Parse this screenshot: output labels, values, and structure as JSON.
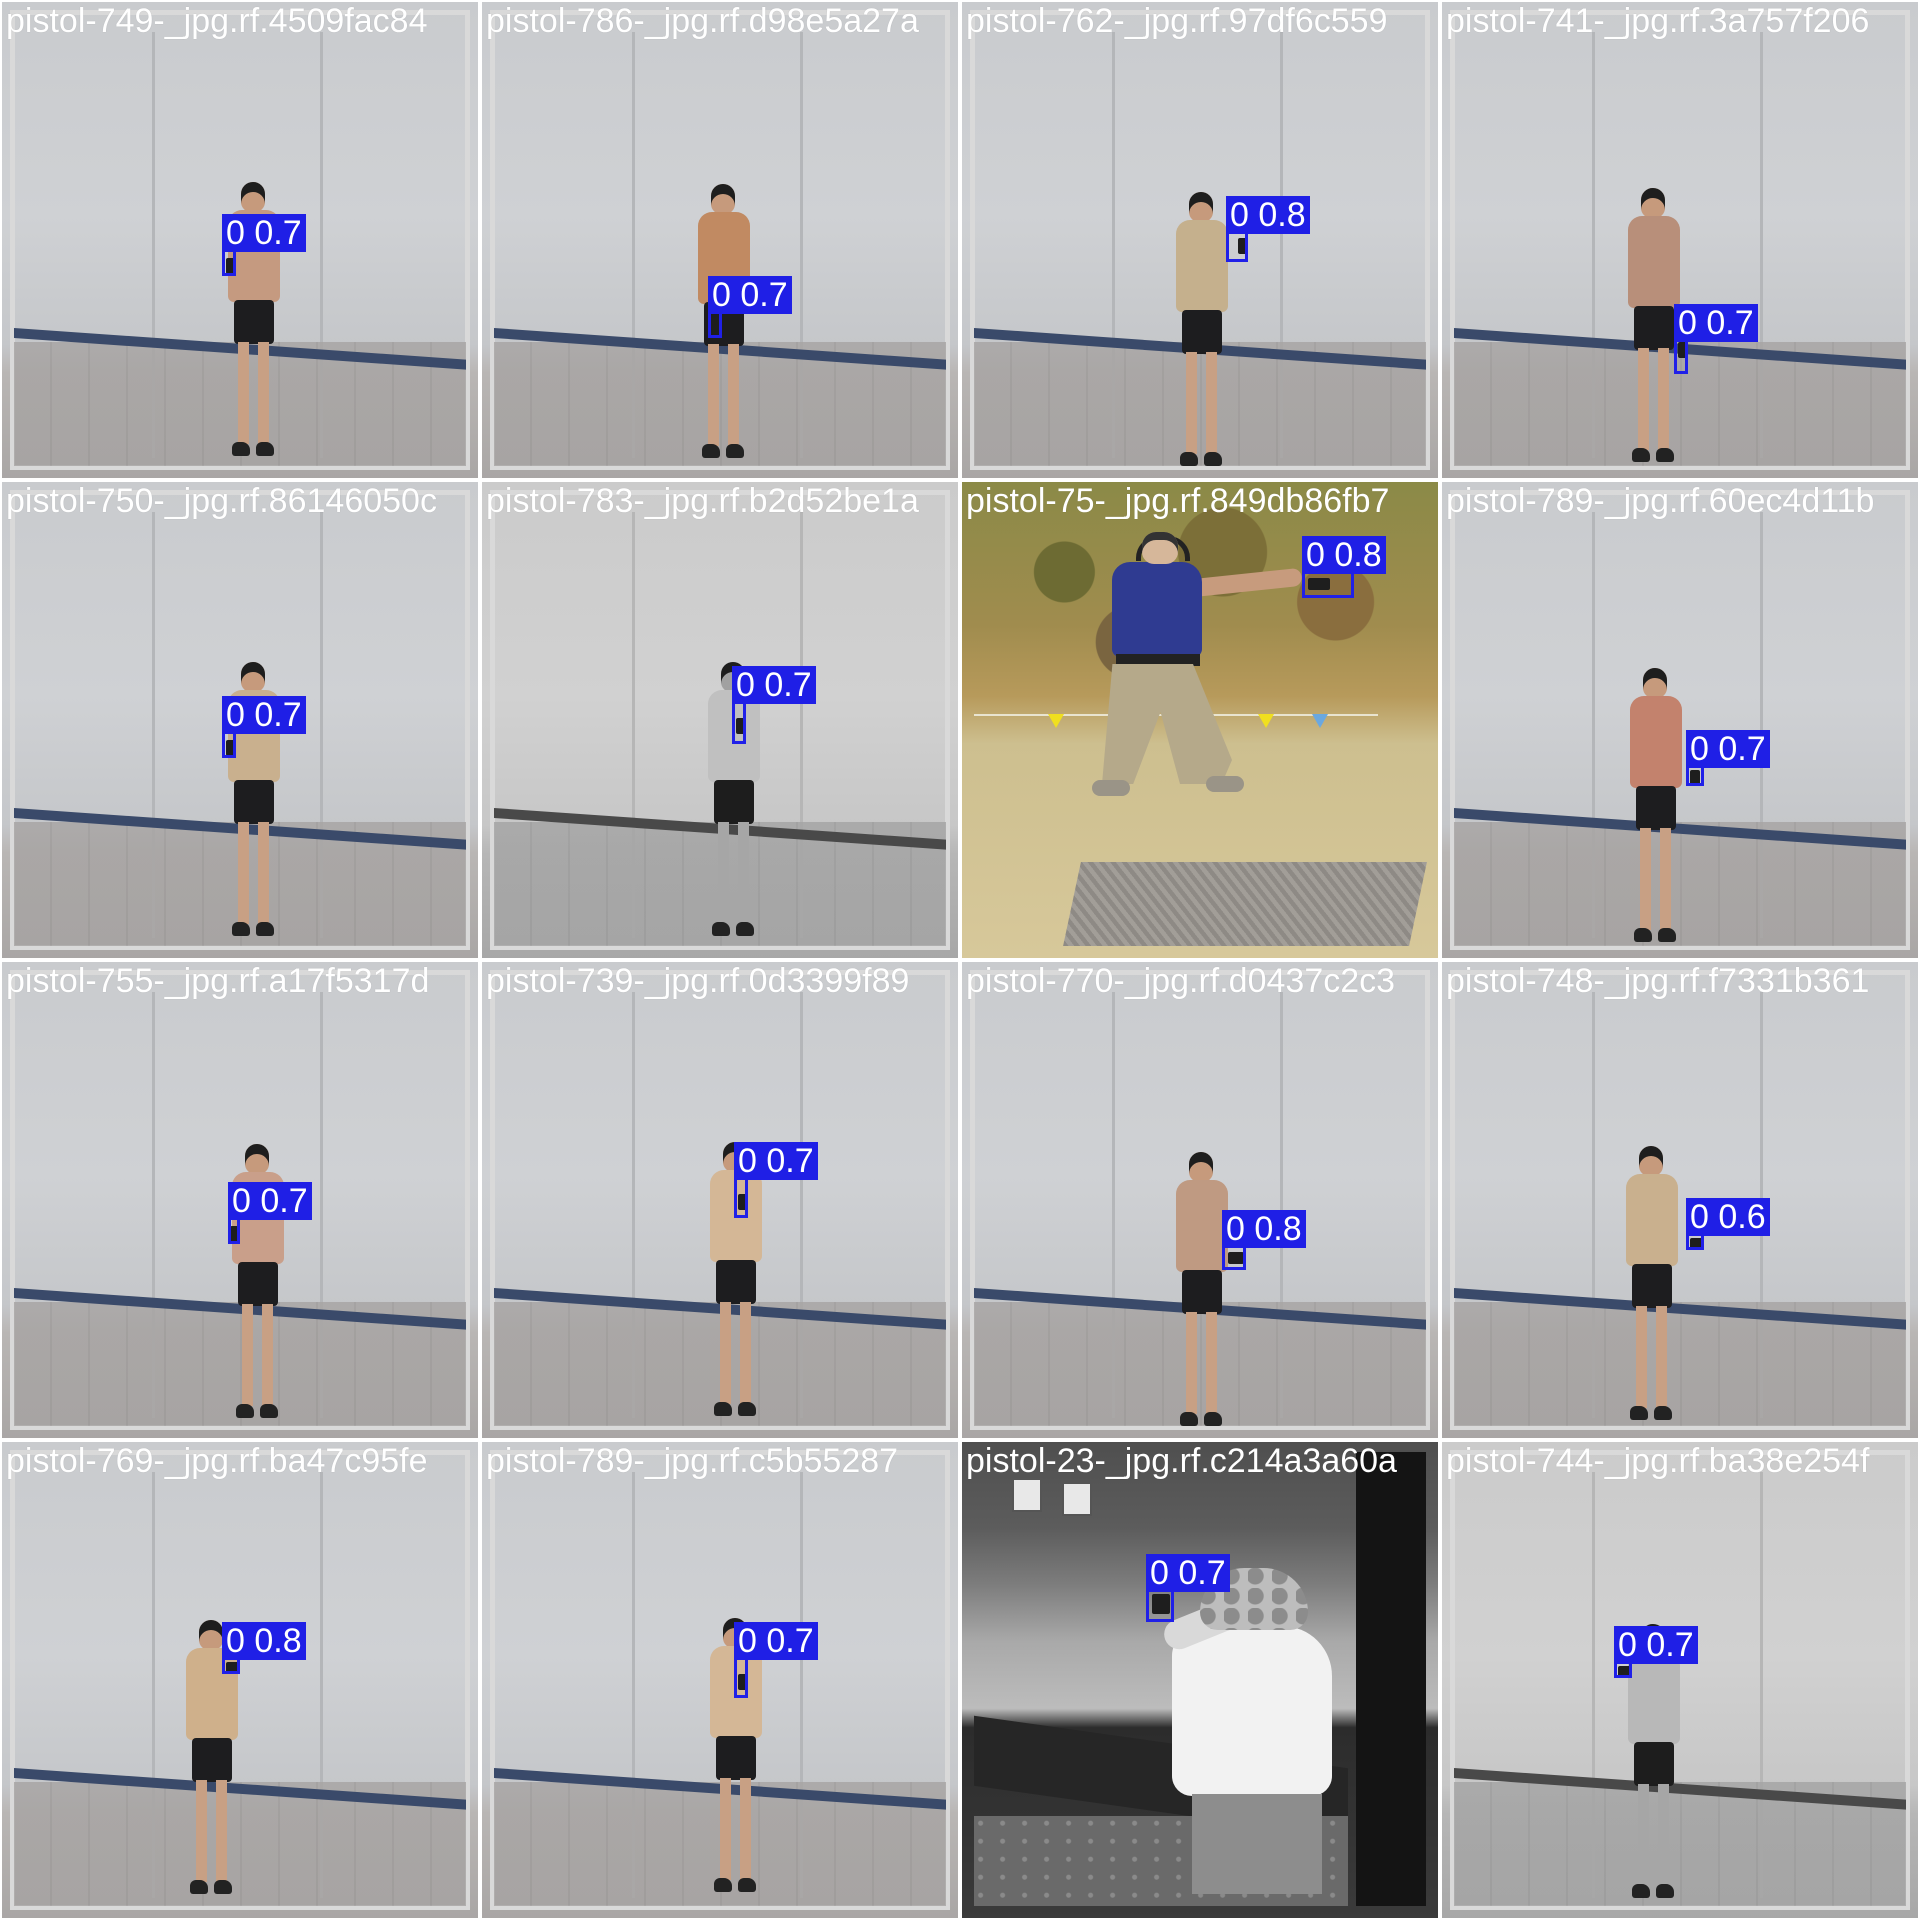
{
  "mosaic": {
    "tiles": [
      {
        "filename": "pistol-749-_jpg.rf.4509fac84",
        "label": "0 0.7",
        "class": "0",
        "confidence": "0.7"
      },
      {
        "filename": "pistol-786-_jpg.rf.d98e5a27a",
        "label": "0 0.7",
        "class": "0",
        "confidence": "0.7"
      },
      {
        "filename": "pistol-762-_jpg.rf.97df6c559",
        "label": "0 0.8",
        "class": "0",
        "confidence": "0.8"
      },
      {
        "filename": "pistol-741-_jpg.rf.3a757f206",
        "label": "0 0.7",
        "class": "0",
        "confidence": "0.7"
      },
      {
        "filename": "pistol-750-_jpg.rf.86146050c",
        "label": "0 0.7",
        "class": "0",
        "confidence": "0.7"
      },
      {
        "filename": "pistol-783-_jpg.rf.b2d52be1a",
        "label": "0 0.7",
        "class": "0",
        "confidence": "0.7"
      },
      {
        "filename": "pistol-75-_jpg.rf.849db86fb7",
        "label": "0 0.8",
        "class": "0",
        "confidence": "0.8"
      },
      {
        "filename": "pistol-789-_jpg.rf.60ec4d11b",
        "label": "0 0.7",
        "class": "0",
        "confidence": "0.7"
      },
      {
        "filename": "pistol-755-_jpg.rf.a17f5317d",
        "label": "0 0.7",
        "class": "0",
        "confidence": "0.7"
      },
      {
        "filename": "pistol-739-_jpg.rf.0d3399f89",
        "label": "0 0.7",
        "class": "0",
        "confidence": "0.7"
      },
      {
        "filename": "pistol-770-_jpg.rf.d0437c2c3",
        "label": "0 0.8",
        "class": "0",
        "confidence": "0.8"
      },
      {
        "filename": "pistol-748-_jpg.rf.f7331b361",
        "label": "0 0.6",
        "class": "0",
        "confidence": "0.6"
      },
      {
        "filename": "pistol-769-_jpg.rf.ba47c95fe",
        "label": "0 0.8",
        "class": "0",
        "confidence": "0.8"
      },
      {
        "filename": "pistol-789-_jpg.rf.c5b55287",
        "label": "0 0.7",
        "class": "0",
        "confidence": "0.7"
      },
      {
        "filename": "pistol-23-_jpg.rf.c214a3a60a",
        "label": "0 0.7",
        "class": "0",
        "confidence": "0.7"
      },
      {
        "filename": "pistol-744-_jpg.rf.ba38e254f",
        "label": "0 0.7",
        "class": "0",
        "confidence": "0.7"
      }
    ]
  },
  "colors": {
    "box": "#2020e8",
    "label_bg": "#1f1fe6",
    "label_text": "#ffffff",
    "filename_text": "#ffffff"
  }
}
